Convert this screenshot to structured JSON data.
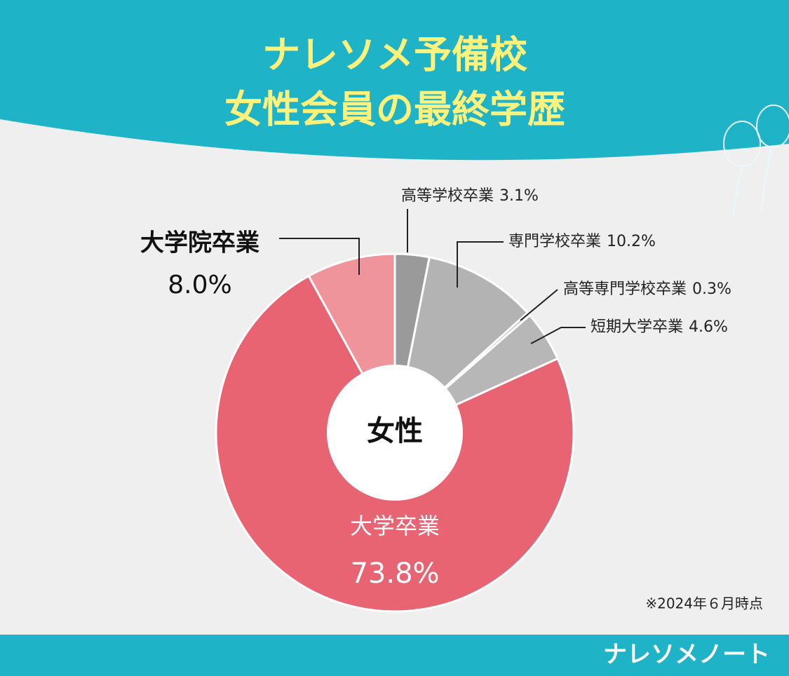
{
  "chart_data": {
    "type": "donut",
    "title": [
      "ナレソメ予備校",
      "女性会員の最終学歴"
    ],
    "center_label": "女性",
    "categories": [
      "高等学校卒業",
      "専門学校卒業",
      "高等専門学校卒業",
      "短期大学卒業",
      "大学卒業",
      "大学院卒業"
    ],
    "values": [
      3.1,
      10.2,
      0.3,
      4.6,
      73.8,
      8.0
    ],
    "value_labels": [
      "3.1%",
      "10.2%",
      "0.3%",
      "4.6%",
      "73.8%",
      "8.0%"
    ],
    "colors": [
      "#9a9a9a",
      "#b3b3b3",
      "#bcbcbc",
      "#b7b7b7",
      "#e86472",
      "#f0949c"
    ],
    "note": "※2024年６月時点",
    "brand": "ナレソメノート"
  }
}
